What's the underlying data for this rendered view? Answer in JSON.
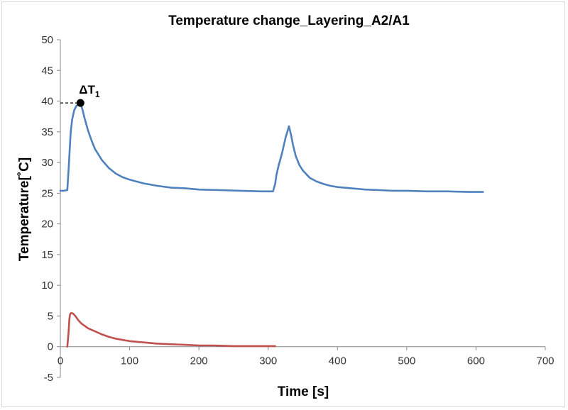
{
  "chart_data": {
    "type": "line",
    "title": "Temperature change_Layering_A2/A1",
    "xlabel": "Time [s]",
    "ylabel": "Temperature[˚C]",
    "xlim": [
      0,
      700
    ],
    "ylim": [
      -5,
      50
    ],
    "xticks": [
      0,
      100,
      200,
      300,
      400,
      500,
      600,
      700
    ],
    "yticks": [
      -5,
      0,
      5,
      10,
      15,
      20,
      25,
      30,
      35,
      40,
      45,
      50
    ],
    "grid": false,
    "legend": "none",
    "annotation": {
      "label": "ΔT",
      "subscript": "1",
      "x": 29,
      "y": 39.7
    },
    "series": [
      {
        "color": "#4f81bd",
        "x": [
          0,
          5,
          10,
          12,
          15,
          17,
          20,
          23,
          26,
          29,
          32,
          35,
          40,
          45,
          50,
          60,
          70,
          80,
          90,
          100,
          120,
          140,
          160,
          180,
          200,
          230,
          260,
          290,
          300,
          307,
          310,
          312,
          315,
          320,
          325,
          330,
          333,
          336,
          340,
          345,
          350,
          360,
          370,
          380,
          390,
          400,
          420,
          440,
          460,
          480,
          500,
          530,
          560,
          590,
          610
        ],
        "y": [
          25.4,
          25.4,
          25.5,
          29,
          35,
          37,
          38.5,
          39.2,
          39.5,
          39.7,
          38.6,
          37.2,
          35.2,
          33.6,
          32.2,
          30.4,
          29.1,
          28.2,
          27.6,
          27.2,
          26.6,
          26.2,
          25.9,
          25.8,
          25.6,
          25.5,
          25.4,
          25.3,
          25.3,
          25.3,
          26.5,
          28.0,
          29.5,
          31.5,
          34,
          35.9,
          34.5,
          32.8,
          31.0,
          29.6,
          28.7,
          27.5,
          26.9,
          26.5,
          26.2,
          26.0,
          25.8,
          25.6,
          25.5,
          25.4,
          25.4,
          25.3,
          25.3,
          25.2,
          25.2
        ]
      },
      {
        "color": "#c0504d",
        "x": [
          10,
          12,
          13,
          14,
          16,
          18,
          20,
          23,
          26,
          30,
          35,
          40,
          50,
          60,
          70,
          80,
          90,
          100,
          120,
          140,
          160,
          180,
          200,
          220,
          250,
          280,
          310
        ],
        "y": [
          0,
          2.5,
          4.5,
          5.3,
          5.5,
          5.4,
          5.2,
          4.8,
          4.3,
          3.8,
          3.4,
          3.0,
          2.5,
          2.0,
          1.6,
          1.3,
          1.1,
          0.9,
          0.7,
          0.5,
          0.4,
          0.3,
          0.2,
          0.2,
          0.1,
          0.1,
          0.1
        ]
      }
    ]
  }
}
